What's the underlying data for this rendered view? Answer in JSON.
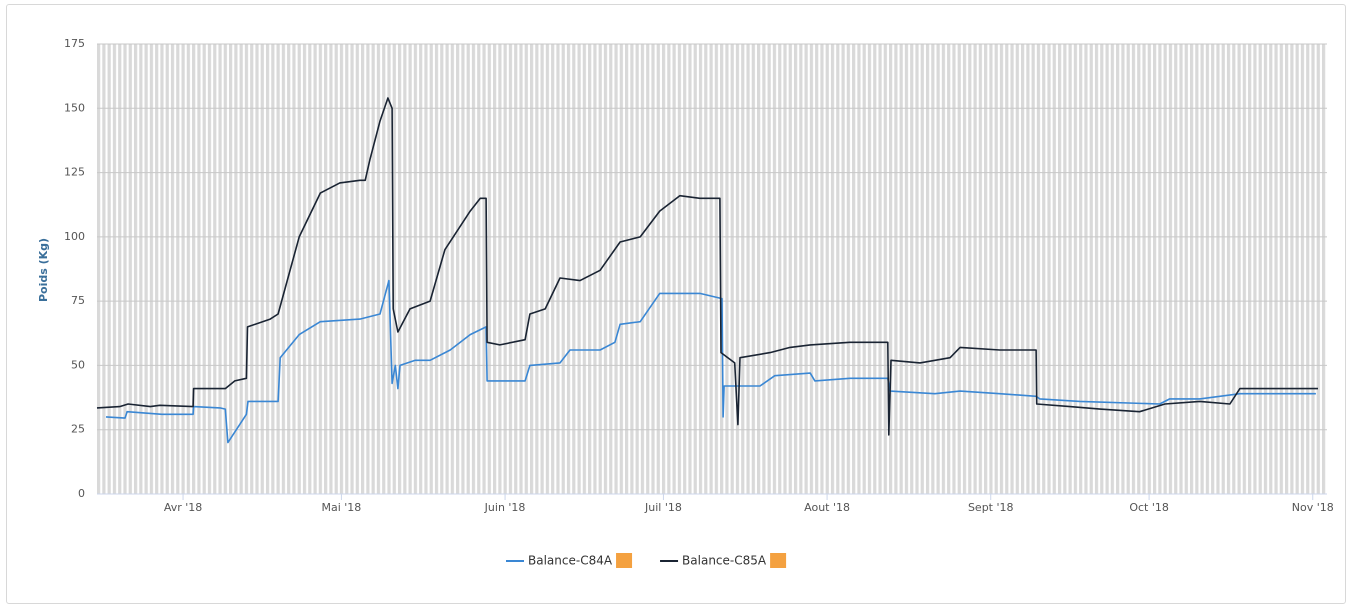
{
  "chart_data": {
    "type": "line",
    "ylabel": "Poids (Kg)",
    "xlim": [
      74.7,
      307.7
    ],
    "xticks": [
      {
        "value": 91,
        "label": "Avr '18"
      },
      {
        "value": 121,
        "label": "Mai '18"
      },
      {
        "value": 152,
        "label": "Juin '18"
      },
      {
        "value": 182,
        "label": "Juil '18"
      },
      {
        "value": 213,
        "label": "Aout '18"
      },
      {
        "value": 244,
        "label": "Sept '18"
      },
      {
        "value": 274,
        "label": "Oct '18"
      },
      {
        "value": 305,
        "label": "Nov '18"
      }
    ],
    "ylim": [
      0,
      175
    ],
    "yticks": [
      0,
      25,
      50,
      75,
      100,
      125,
      150,
      175
    ],
    "grid": true,
    "series": [
      {
        "name": "Balance-C84A",
        "color": "#3a87d4",
        "x": [
          76.4,
          80,
          80.4,
          87,
          92.9,
          93,
          98,
          99,
          99.5,
          103,
          103.3,
          109,
          109.4,
          113,
          117,
          124.5,
          128.3,
          130,
          130.6,
          131.2,
          131.7,
          132.1,
          135,
          137.8,
          141.6,
          145.4,
          148.4,
          148.6,
          155.8,
          156.7,
          162.4,
          164.3,
          170,
          172.8,
          173.8,
          177.6,
          181.3,
          185.1,
          188.9,
          193.1,
          193.3,
          193.5,
          200.3,
          203.1,
          209.8,
          210.7,
          217.3,
          224.5,
          224.9,
          233.4,
          238.2,
          245.7,
          252.6,
          253.3,
          260.9,
          276,
          277.9,
          283.6,
          291.2,
          305.6
        ],
        "values": [
          30,
          29.5,
          32,
          31,
          31,
          34,
          33.5,
          33,
          20,
          31,
          36,
          36,
          53,
          62,
          67,
          68,
          70,
          83,
          43,
          50,
          41,
          50,
          52,
          52,
          56,
          62,
          65,
          44,
          44,
          50,
          51,
          56,
          56,
          59,
          66,
          67,
          78,
          78,
          78,
          76,
          30,
          42,
          42,
          46,
          47,
          44,
          45,
          45,
          40,
          39,
          40,
          39,
          38,
          37,
          36,
          35,
          37,
          37,
          39,
          39
        ]
      },
      {
        "name": "Balance-C85A",
        "color": "#1a2433",
        "x": [
          74.7,
          79,
          80.6,
          84.8,
          86.6,
          92.9,
          93,
          99,
          100.8,
          103,
          103.2,
          107.5,
          109,
          113,
          117,
          120.7,
          124.5,
          125.5,
          126.4,
          128.3,
          129.8,
          130.6,
          130.8,
          131.7,
          134,
          137.8,
          140.6,
          145.4,
          147.3,
          148.4,
          148.6,
          151,
          155.8,
          156.7,
          159.6,
          162.4,
          166.2,
          170,
          173.8,
          177.6,
          181.3,
          185.1,
          188.9,
          192.7,
          192.9,
          195.5,
          196.1,
          196.5,
          202.2,
          206,
          209.8,
          217.3,
          224.5,
          224.7,
          225.1,
          230.6,
          236.3,
          238.2,
          245.7,
          252.6,
          252.7,
          259,
          264.7,
          272.2,
          277,
          283.6,
          289.3,
          291.2,
          300.7,
          306
        ],
        "values": [
          33.5,
          34,
          35,
          34,
          34.5,
          34,
          41,
          41,
          44,
          45,
          65,
          68,
          70,
          100,
          117,
          121,
          122,
          122,
          130,
          145,
          154,
          150,
          72,
          63,
          72,
          75,
          95,
          110,
          115,
          115,
          59,
          58,
          60,
          70,
          72,
          84,
          83,
          87,
          98,
          100,
          110,
          116,
          115,
          115,
          55,
          51,
          27,
          53,
          55,
          57,
          58,
          59,
          59,
          23,
          52,
          51,
          53,
          57,
          56,
          56,
          35,
          34,
          33,
          32,
          35,
          36,
          35,
          41,
          41,
          41
        ]
      }
    ]
  }
}
